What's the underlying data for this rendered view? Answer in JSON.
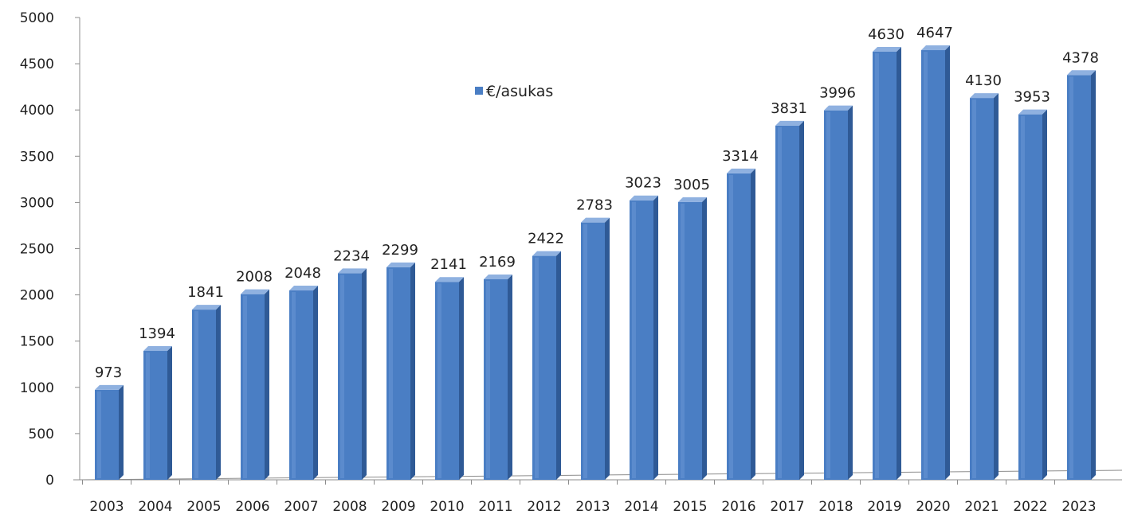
{
  "chart_data": {
    "type": "bar",
    "title": "",
    "xlabel": "",
    "ylabel": "",
    "categories": [
      "2003",
      "2004",
      "2005",
      "2006",
      "2007",
      "2008",
      "2009",
      "2010",
      "2011",
      "2012",
      "2013",
      "2014",
      "2015",
      "2016",
      "2017",
      "2018",
      "2019",
      "2020",
      "2021",
      "2022",
      "2023"
    ],
    "series": [
      {
        "name": "€/asukas",
        "values": [
          973,
          1394,
          1841,
          2008,
          2048,
          2234,
          2299,
          2141,
          2169,
          2422,
          2783,
          3023,
          3005,
          3314,
          3831,
          3996,
          4630,
          4647,
          4130,
          3953,
          4378
        ],
        "color": "#4a7ec4"
      }
    ],
    "ylim": [
      0,
      5000
    ],
    "yticks": [
      0,
      500,
      1000,
      1500,
      2000,
      2500,
      3000,
      3500,
      4000,
      4500,
      5000
    ],
    "ytick_labels": [
      "0",
      "500",
      "1000",
      "1500",
      "2000",
      "2500",
      "3000",
      "3500",
      "4000",
      "4500",
      "5000"
    ],
    "grid": false,
    "legend": {
      "position": "top-center",
      "label": "€/asukas"
    },
    "data_labels": true,
    "style": "3d-columns"
  }
}
